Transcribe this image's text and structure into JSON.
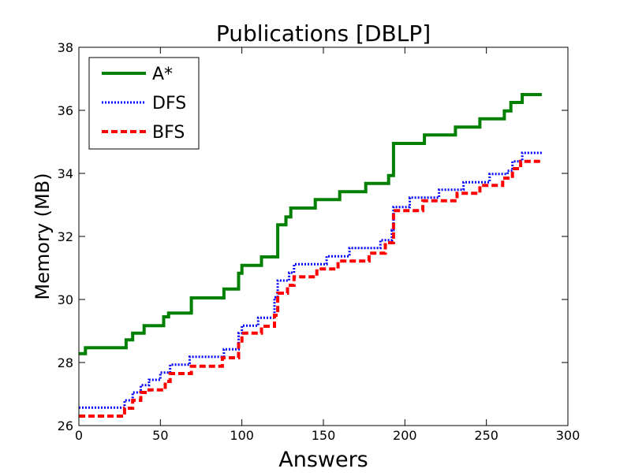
{
  "chart_data": {
    "type": "line",
    "title": "Publications [DBLP]",
    "xlabel": "Answers",
    "ylabel": "Memory (MB)",
    "xlim": [
      0,
      300
    ],
    "ylim": [
      26,
      38
    ],
    "xticks": [
      "0",
      "50",
      "100",
      "150",
      "200",
      "250",
      "300"
    ],
    "yticks": [
      "26",
      "28",
      "30",
      "32",
      "34",
      "36",
      "38"
    ],
    "grid": false,
    "legend_position": "top-left",
    "series": [
      {
        "name": "A*",
        "color": "#008000",
        "style": "solid",
        "points": [
          [
            0,
            28.28
          ],
          [
            4,
            28.28
          ],
          [
            4,
            28.47
          ],
          [
            26,
            28.47
          ],
          [
            26,
            28.47
          ],
          [
            29,
            28.47
          ],
          [
            29,
            28.72
          ],
          [
            33,
            28.72
          ],
          [
            33,
            28.93
          ],
          [
            40,
            28.93
          ],
          [
            40,
            29.17
          ],
          [
            52,
            29.17
          ],
          [
            52,
            29.45
          ],
          [
            55,
            29.45
          ],
          [
            55,
            29.57
          ],
          [
            69,
            29.57
          ],
          [
            69,
            30.05
          ],
          [
            89,
            30.05
          ],
          [
            89,
            30.33
          ],
          [
            98,
            30.33
          ],
          [
            98,
            30.83
          ],
          [
            100,
            30.83
          ],
          [
            100,
            31.08
          ],
          [
            112,
            31.08
          ],
          [
            112,
            31.35
          ],
          [
            122,
            31.35
          ],
          [
            122,
            32.37
          ],
          [
            127,
            32.37
          ],
          [
            127,
            32.62
          ],
          [
            130,
            32.62
          ],
          [
            130,
            32.9
          ],
          [
            145,
            32.9
          ],
          [
            145,
            33.17
          ],
          [
            160,
            33.17
          ],
          [
            160,
            33.42
          ],
          [
            176,
            33.42
          ],
          [
            176,
            33.68
          ],
          [
            190,
            33.68
          ],
          [
            190,
            33.93
          ],
          [
            193,
            33.93
          ],
          [
            193,
            34.95
          ],
          [
            212,
            34.95
          ],
          [
            212,
            35.22
          ],
          [
            231,
            35.22
          ],
          [
            231,
            35.47
          ],
          [
            246,
            35.47
          ],
          [
            246,
            35.73
          ],
          [
            261,
            35.73
          ],
          [
            261,
            35.98
          ],
          [
            265,
            35.98
          ],
          [
            265,
            36.25
          ],
          [
            272,
            36.25
          ],
          [
            272,
            36.5
          ],
          [
            284,
            36.5
          ]
        ]
      },
      {
        "name": "DFS",
        "color": "#0000ff",
        "style": "dotted",
        "points": [
          [
            0,
            26.57
          ],
          [
            28,
            26.57
          ],
          [
            28,
            26.8
          ],
          [
            33,
            26.8
          ],
          [
            33,
            27.05
          ],
          [
            38,
            27.05
          ],
          [
            38,
            27.28
          ],
          [
            43,
            27.28
          ],
          [
            43,
            27.45
          ],
          [
            50,
            27.45
          ],
          [
            50,
            27.68
          ],
          [
            56,
            27.68
          ],
          [
            56,
            27.93
          ],
          [
            68,
            27.93
          ],
          [
            68,
            28.18
          ],
          [
            89,
            28.18
          ],
          [
            89,
            28.42
          ],
          [
            98,
            28.42
          ],
          [
            98,
            28.93
          ],
          [
            100,
            28.93
          ],
          [
            100,
            29.17
          ],
          [
            110,
            29.17
          ],
          [
            110,
            29.42
          ],
          [
            120,
            29.42
          ],
          [
            120,
            30.07
          ],
          [
            122,
            30.07
          ],
          [
            122,
            30.6
          ],
          [
            129,
            30.6
          ],
          [
            129,
            30.85
          ],
          [
            132,
            30.85
          ],
          [
            132,
            31.12
          ],
          [
            152,
            31.12
          ],
          [
            152,
            31.37
          ],
          [
            166,
            31.37
          ],
          [
            166,
            31.63
          ],
          [
            185,
            31.63
          ],
          [
            185,
            31.88
          ],
          [
            192,
            31.88
          ],
          [
            192,
            32.2
          ],
          [
            193,
            32.2
          ],
          [
            193,
            32.93
          ],
          [
            203,
            32.93
          ],
          [
            203,
            33.23
          ],
          [
            221,
            33.23
          ],
          [
            221,
            33.48
          ],
          [
            236,
            33.48
          ],
          [
            236,
            33.72
          ],
          [
            252,
            33.72
          ],
          [
            252,
            33.98
          ],
          [
            263,
            33.98
          ],
          [
            263,
            34.08
          ],
          [
            266,
            34.08
          ],
          [
            266,
            34.38
          ],
          [
            272,
            34.38
          ],
          [
            272,
            34.65
          ],
          [
            284,
            34.65
          ]
        ]
      },
      {
        "name": "BFS",
        "color": "#ff0000",
        "style": "dashed",
        "points": [
          [
            0,
            26.3
          ],
          [
            28,
            26.3
          ],
          [
            28,
            26.55
          ],
          [
            33,
            26.55
          ],
          [
            33,
            26.8
          ],
          [
            38,
            26.8
          ],
          [
            38,
            27.05
          ],
          [
            43,
            27.05
          ],
          [
            43,
            27.13
          ],
          [
            53,
            27.13
          ],
          [
            53,
            27.4
          ],
          [
            56,
            27.4
          ],
          [
            56,
            27.65
          ],
          [
            69,
            27.65
          ],
          [
            69,
            27.88
          ],
          [
            88,
            27.88
          ],
          [
            88,
            28.15
          ],
          [
            98,
            28.15
          ],
          [
            98,
            28.68
          ],
          [
            100,
            28.68
          ],
          [
            100,
            28.93
          ],
          [
            112,
            28.93
          ],
          [
            112,
            29.15
          ],
          [
            120,
            29.15
          ],
          [
            120,
            29.5
          ],
          [
            122,
            29.5
          ],
          [
            122,
            30.2
          ],
          [
            128,
            30.2
          ],
          [
            128,
            30.45
          ],
          [
            132,
            30.45
          ],
          [
            132,
            30.72
          ],
          [
            146,
            30.72
          ],
          [
            146,
            30.97
          ],
          [
            159,
            30.97
          ],
          [
            159,
            31.22
          ],
          [
            178,
            31.22
          ],
          [
            178,
            31.47
          ],
          [
            188,
            31.47
          ],
          [
            188,
            31.8
          ],
          [
            193,
            31.8
          ],
          [
            193,
            32.82
          ],
          [
            211,
            32.82
          ],
          [
            211,
            33.13
          ],
          [
            232,
            33.13
          ],
          [
            232,
            33.37
          ],
          [
            246,
            33.37
          ],
          [
            246,
            33.62
          ],
          [
            260,
            33.62
          ],
          [
            260,
            33.85
          ],
          [
            266,
            33.85
          ],
          [
            266,
            34.15
          ],
          [
            271,
            34.15
          ],
          [
            271,
            34.38
          ],
          [
            284,
            34.38
          ]
        ]
      }
    ]
  }
}
